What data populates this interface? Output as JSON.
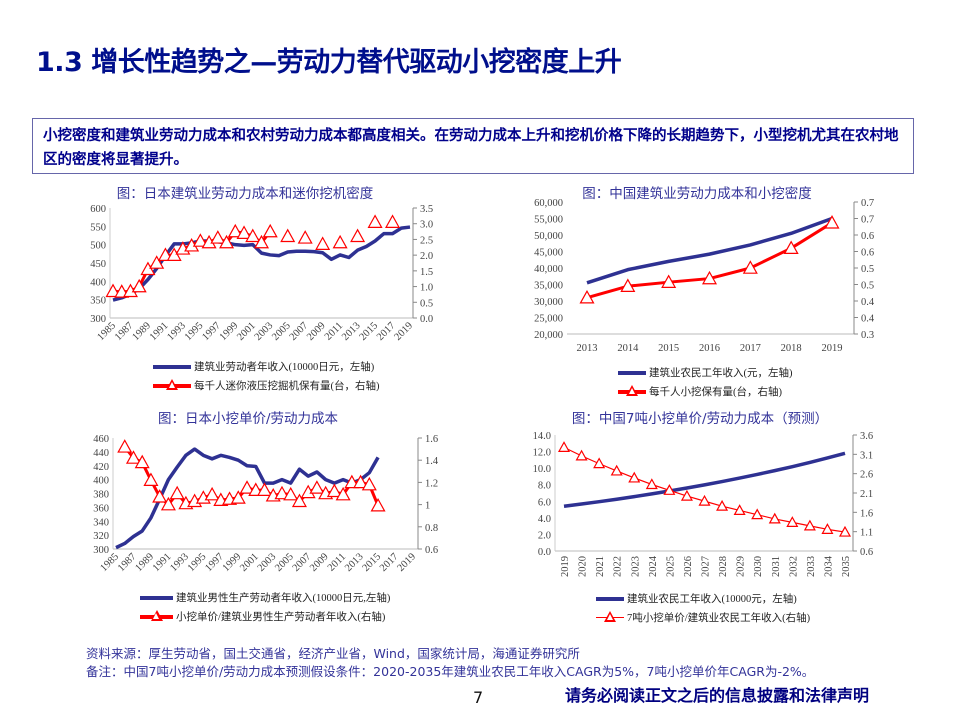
{
  "header": {
    "title": "1.3 增长性趋势之—劳动力替代驱动小挖密度上升"
  },
  "summary": "小挖密度和建筑业劳动力成本和农村劳动力成本都高度相关。在劳动力成本上升和挖机价格下降的长期趋势下，小型挖机尤其在农村地区的密度将显著提升。",
  "colors": {
    "blue": "#2e3192",
    "red": "#ff0000",
    "title": "#000f8c"
  },
  "chart_data": [
    {
      "type": "line",
      "title": "图：日本建筑业劳动力成本和迷你挖机密度",
      "categories": [
        "1985",
        "1986",
        "1987",
        "1988",
        "1989",
        "1990",
        "1991",
        "1992",
        "1993",
        "1994",
        "1995",
        "1996",
        "1997",
        "1998",
        "1999",
        "2000",
        "2001",
        "2002",
        "2003",
        "2004",
        "2005",
        "2006",
        "2007",
        "2008",
        "2009",
        "2010",
        "2011",
        "2012",
        "2013",
        "2014",
        "2015",
        "2016",
        "2017",
        "2018",
        "2019"
      ],
      "xtick_labels": [
        "1985",
        "",
        "1987",
        "",
        "1989",
        "",
        "1991",
        "",
        "1993",
        "",
        "1995",
        "",
        "1997",
        "",
        "1999",
        "",
        "2001",
        "",
        "2003",
        "",
        "2005",
        "",
        "2007",
        "",
        "2009",
        "",
        "2011",
        "",
        "2013",
        "",
        "2015",
        "",
        "2017",
        "",
        "2019"
      ],
      "y_left": {
        "range": [
          300,
          600
        ],
        "ticks": [
          "300",
          "350",
          "400",
          "450",
          "500",
          "550",
          "600"
        ]
      },
      "y_right": {
        "range": [
          0,
          3.5
        ],
        "ticks": [
          "0.0",
          "0.5",
          "1.0",
          "1.5",
          "2.0",
          "2.5",
          "3.0",
          "3.5"
        ]
      },
      "series": [
        {
          "name": "建筑业劳动者年收入(10000日元，左轴)",
          "axis": "left",
          "values": [
            349,
            355,
            365,
            380,
            405,
            435,
            470,
            502,
            502,
            505,
            510,
            510,
            508,
            505,
            500,
            498,
            500,
            477,
            472,
            470,
            480,
            482,
            482,
            481,
            478,
            460,
            472,
            465,
            485,
            495,
            510,
            530,
            530,
            545,
            548
          ]
        },
        {
          "name": "每千人迷你液压挖掘机保有量(台，右轴)",
          "axis": "right",
          "marker": "triangle",
          "values": [
            0.85,
            0.83,
            0.85,
            1.0,
            1.55,
            1.75,
            2.0,
            2.0,
            2.2,
            2.3,
            2.45,
            2.4,
            2.55,
            2.4,
            2.75,
            2.7,
            2.6,
            2.4,
            2.75,
            null,
            2.6,
            null,
            2.55,
            null,
            2.35,
            null,
            2.4,
            null,
            2.6,
            null,
            3.05,
            null,
            3.05,
            null,
            null
          ]
        }
      ]
    },
    {
      "type": "line",
      "title": "图：中国建筑业劳动力成本和小挖密度",
      "categories": [
        "2013",
        "2014",
        "2015",
        "2016",
        "2017",
        "2018",
        "2019"
      ],
      "xtick_labels": [
        "2013",
        "2014",
        "2015",
        "2016",
        "2017",
        "2018",
        "2019"
      ],
      "y_left": {
        "range": [
          20000,
          60000
        ],
        "ticks": [
          "20,000",
          "25,000",
          "30,000",
          "35,000",
          "40,000",
          "45,000",
          "50,000",
          "55,000",
          "60,000"
        ]
      },
      "y_right": {
        "range": [
          0.3,
          0.7
        ],
        "ticks": [
          "0.3",
          "0.4",
          "0.4",
          "0.5",
          "0.5",
          "0.6",
          "0.6",
          "0.7",
          "0.7"
        ]
      },
      "series": [
        {
          "name": "建筑业农民工年收入(元，左轴)",
          "axis": "left",
          "values": [
            35500,
            39500,
            42000,
            44200,
            47000,
            50500,
            55000
          ]
        },
        {
          "name": "每千人小挖保有量(台，右轴)",
          "axis": "right",
          "marker": "triangle",
          "values": [
            0.41,
            0.445,
            0.457,
            0.468,
            0.5,
            0.56,
            0.637
          ]
        }
      ]
    },
    {
      "type": "line",
      "title": "图：日本小挖单价/劳动力成本",
      "categories": [
        "1985",
        "1986",
        "1987",
        "1988",
        "1989",
        "1990",
        "1991",
        "1992",
        "1993",
        "1994",
        "1995",
        "1996",
        "1997",
        "1998",
        "1999",
        "2000",
        "2001",
        "2002",
        "2003",
        "2004",
        "2005",
        "2006",
        "2007",
        "2008",
        "2009",
        "2010",
        "2011",
        "2012",
        "2013",
        "2014",
        "2015",
        "2016",
        "2017",
        "2018",
        "2019"
      ],
      "xtick_labels": [
        "1985",
        "",
        "1987",
        "",
        "1989",
        "",
        "1991",
        "",
        "1993",
        "",
        "1995",
        "",
        "1997",
        "",
        "1999",
        "",
        "2001",
        "",
        "2003",
        "",
        "2005",
        "",
        "2007",
        "",
        "2009",
        "",
        "2011",
        "",
        "2013",
        "",
        "2015",
        "",
        "2017",
        "",
        "2019"
      ],
      "y_left": {
        "range": [
          300,
          460
        ],
        "ticks": [
          "300",
          "320",
          "340",
          "360",
          "380",
          "400",
          "420",
          "440",
          "460"
        ]
      },
      "y_right": {
        "range": [
          0.6,
          1.6
        ],
        "ticks": [
          "0.6",
          "0.8",
          "1",
          "1.2",
          "1.4",
          "1.6"
        ]
      },
      "series": [
        {
          "name": "建筑业男性生产劳动者年收入(10000日元,左轴)",
          "axis": "left",
          "values": [
            302,
            308,
            318,
            326,
            345,
            372,
            400,
            418,
            435,
            444,
            435,
            430,
            435,
            432,
            428,
            420,
            419,
            395,
            395,
            400,
            395,
            415,
            405,
            411,
            400,
            395,
            400,
            395,
            400,
            410,
            432,
            null,
            null,
            null,
            null
          ]
        },
        {
          "name": "小挖单价/建筑业男性生产劳动者年收入(右轴)",
          "axis": "right",
          "marker": "triangle",
          "values": [
            null,
            1.52,
            1.42,
            1.38,
            1.22,
            1.07,
            1.0,
            1.1,
            1.01,
            1.03,
            1.06,
            1.09,
            1.04,
            1.05,
            1.06,
            1.15,
            1.13,
            1.13,
            1.08,
            1.1,
            1.09,
            1.03,
            1.11,
            1.15,
            1.1,
            1.12,
            1.09,
            1.2,
            1.2,
            1.18,
            0.99,
            null,
            null,
            null,
            null
          ]
        }
      ]
    },
    {
      "type": "line",
      "title": "图：中国7吨小挖单价/劳动力成本（预测）",
      "categories": [
        "2019",
        "2020",
        "2021",
        "2022",
        "2023",
        "2024",
        "2025",
        "2026",
        "2027",
        "2028",
        "2029",
        "2030",
        "2031",
        "2032",
        "2033",
        "2034",
        "2035"
      ],
      "xtick_labels": [
        "2019",
        "2020",
        "2021",
        "2022",
        "2023",
        "2024",
        "2025",
        "2026",
        "2027",
        "2028",
        "2029",
        "2030",
        "2031",
        "2032",
        "2033",
        "2034",
        "2035"
      ],
      "y_left": {
        "range": [
          0,
          14
        ],
        "ticks": [
          "0.0",
          "2.0",
          "4.0",
          "6.0",
          "8.0",
          "10.0",
          "12.0",
          "14.0"
        ]
      },
      "y_right": {
        "range": [
          0.6,
          3.6
        ],
        "ticks": [
          "0.6",
          "1.1",
          "1.6",
          "2.1",
          "2.6",
          "3.1",
          "3.6"
        ]
      },
      "series": [
        {
          "name": "建筑业农民工年收入(10000元，左轴)",
          "axis": "left",
          "values": [
            5.4,
            5.67,
            5.95,
            6.25,
            6.56,
            6.89,
            7.24,
            7.6,
            7.98,
            8.38,
            8.8,
            9.24,
            9.7,
            10.18,
            10.69,
            11.23,
            11.79
          ]
        },
        {
          "name": "7吨小挖单价/建筑业农民工年收入(右轴)",
          "axis": "right",
          "marker": "triangle",
          "values": [
            3.28,
            3.06,
            2.86,
            2.67,
            2.49,
            2.32,
            2.17,
            2.02,
            1.89,
            1.76,
            1.65,
            1.54,
            1.43,
            1.34,
            1.25,
            1.16,
            1.09
          ]
        }
      ]
    }
  ],
  "footer": {
    "source": "资料来源：厚生劳动省，国土交通省，经济产业省，Wind，国家统计局，海通证券研究所",
    "note": "备注：中国7吨小挖单价/劳动力成本预测假设条件：2020-2035年建筑业农民工年收入CAGR为5%，7吨小挖单价年CAGR为-2%。",
    "page_number": "7",
    "disclaimer": "请务必阅读正文之后的信息披露和法律声明"
  }
}
